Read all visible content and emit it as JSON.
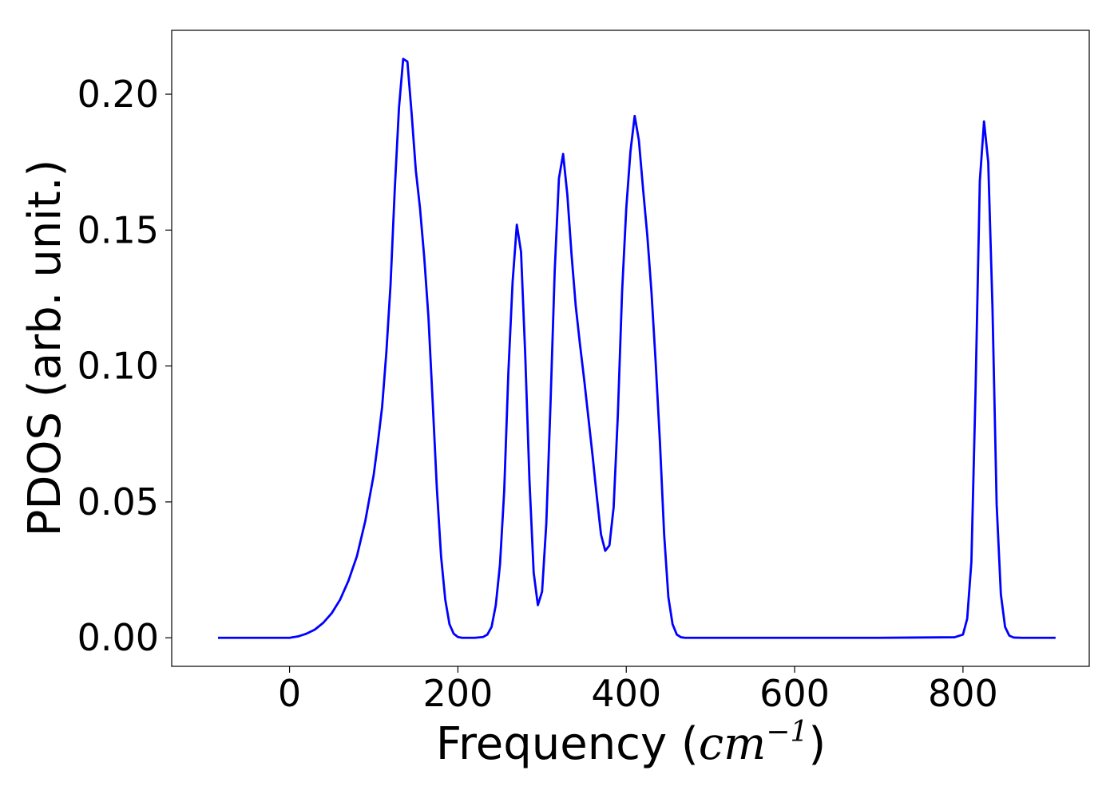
{
  "chart_data": {
    "type": "line",
    "title": "",
    "xlabel": {
      "prefix": "Frequency (",
      "unit": "cm",
      "exponent": "−1",
      "suffix": ")"
    },
    "ylabel": "PDOS (arb. unit.)",
    "xlim": [
      -140,
      950
    ],
    "ylim": [
      -0.0105,
      0.2235
    ],
    "xticks": [
      0,
      200,
      400,
      600,
      800
    ],
    "xtick_labels": [
      "0",
      "200",
      "400",
      "600",
      "800"
    ],
    "yticks": [
      0.0,
      0.05,
      0.1,
      0.15,
      0.2
    ],
    "ytick_labels": [
      "0.00",
      "0.05",
      "0.10",
      "0.15",
      "0.20"
    ],
    "grid": false,
    "legend": "none",
    "colors": {
      "line": "#0000ff",
      "frame": "#000000",
      "background": "#ffffff"
    },
    "series": [
      {
        "x": [
          -85,
          -60,
          -40,
          -20,
          0,
          10,
          20,
          30,
          40,
          50,
          60,
          70,
          80,
          90,
          100,
          105,
          110,
          115,
          120,
          125,
          130,
          135,
          140,
          145,
          150,
          155,
          160,
          165,
          170,
          175,
          180,
          185,
          190,
          195,
          200,
          205,
          210,
          215,
          220,
          230,
          235,
          240,
          245,
          250,
          255,
          260,
          265,
          270,
          275,
          280,
          285,
          290,
          295,
          300,
          305,
          310,
          315,
          320,
          325,
          330,
          335,
          340,
          345,
          350,
          355,
          360,
          365,
          370,
          375,
          380,
          385,
          390,
          395,
          400,
          405,
          410,
          415,
          420,
          425,
          430,
          435,
          440,
          445,
          450,
          455,
          460,
          465,
          470,
          475,
          480,
          500,
          600,
          700,
          790,
          800,
          805,
          810,
          815,
          820,
          825,
          830,
          835,
          840,
          845,
          850,
          855,
          860,
          870,
          910
        ],
        "y": [
          0.0,
          0.0,
          0.0,
          0.0,
          0.0,
          0.0005,
          0.0015,
          0.003,
          0.0055,
          0.009,
          0.014,
          0.021,
          0.03,
          0.043,
          0.06,
          0.072,
          0.085,
          0.105,
          0.13,
          0.165,
          0.195,
          0.213,
          0.212,
          0.193,
          0.172,
          0.158,
          0.14,
          0.118,
          0.087,
          0.055,
          0.03,
          0.014,
          0.005,
          0.0015,
          0.0003,
          0.0,
          0.0,
          0.0,
          0.0,
          0.0003,
          0.0012,
          0.004,
          0.012,
          0.027,
          0.054,
          0.098,
          0.131,
          0.152,
          0.142,
          0.104,
          0.058,
          0.024,
          0.012,
          0.017,
          0.042,
          0.086,
          0.135,
          0.169,
          0.178,
          0.163,
          0.141,
          0.122,
          0.108,
          0.095,
          0.081,
          0.067,
          0.052,
          0.038,
          0.032,
          0.034,
          0.048,
          0.082,
          0.127,
          0.158,
          0.179,
          0.192,
          0.183,
          0.165,
          0.148,
          0.127,
          0.101,
          0.072,
          0.038,
          0.015,
          0.005,
          0.0012,
          0.0002,
          0.0,
          0.0,
          0.0,
          0.0,
          0.0,
          0.0,
          0.0002,
          0.0012,
          0.007,
          0.028,
          0.092,
          0.168,
          0.19,
          0.175,
          0.122,
          0.049,
          0.016,
          0.004,
          0.0008,
          0.0001,
          0.0,
          0.0
        ]
      }
    ]
  }
}
